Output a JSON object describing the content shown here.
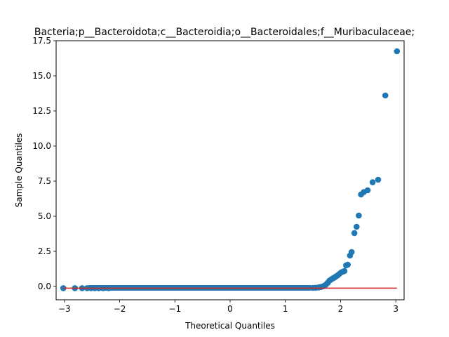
{
  "chart_data": {
    "type": "scatter",
    "title": "Bacteria;p__Bacteroidota;c__Bacteroidia;o__Bacteroidales;f__Muribaculaceae;",
    "xlabel": "Theoretical Quantiles",
    "ylabel": "Sample Quantiles",
    "xlim": [
      -3.15,
      3.15
    ],
    "ylim": [
      -0.95,
      17.5
    ],
    "xticks": [
      -3,
      -2,
      -1,
      0,
      1,
      2,
      3
    ],
    "xtick_labels": [
      "−3",
      "−2",
      "−1",
      "0",
      "1",
      "2",
      "3"
    ],
    "yticks": [
      0.0,
      2.5,
      5.0,
      7.5,
      10.0,
      12.5,
      15.0,
      17.5
    ],
    "ytick_labels": [
      "0.0",
      "2.5",
      "5.0",
      "7.5",
      "10.0",
      "12.5",
      "15.0",
      "17.5"
    ],
    "grid": false,
    "marker_color": "#1f77b4",
    "reference_line": {
      "color": "#d62728",
      "x": [
        -3.02,
        3.02
      ],
      "y": [
        -0.12,
        -0.12
      ]
    },
    "dense_band": {
      "x_from": -2.6,
      "x_to": 1.5,
      "y": -0.1
    },
    "points": [
      [
        -3.02,
        -0.12
      ],
      [
        -2.81,
        -0.12
      ],
      [
        -2.68,
        -0.12
      ],
      [
        -2.59,
        -0.12
      ],
      [
        -2.52,
        -0.12
      ],
      [
        -2.45,
        -0.12
      ],
      [
        -2.38,
        -0.12
      ],
      [
        -2.3,
        -0.12
      ],
      [
        -2.2,
        -0.12
      ],
      [
        1.5,
        -0.1
      ],
      [
        1.55,
        -0.09
      ],
      [
        1.6,
        -0.07
      ],
      [
        1.64,
        -0.04
      ],
      [
        1.68,
        0.0
      ],
      [
        1.71,
        0.06
      ],
      [
        1.74,
        0.15
      ],
      [
        1.77,
        0.27
      ],
      [
        1.8,
        0.42
      ],
      [
        1.83,
        0.5
      ],
      [
        1.86,
        0.57
      ],
      [
        1.89,
        0.64
      ],
      [
        1.92,
        0.72
      ],
      [
        1.95,
        0.8
      ],
      [
        1.98,
        0.9
      ],
      [
        2.01,
        1.0
      ],
      [
        2.04,
        1.05
      ],
      [
        2.07,
        1.1
      ],
      [
        2.1,
        1.5
      ],
      [
        2.13,
        1.55
      ],
      [
        2.17,
        2.2
      ],
      [
        2.2,
        2.45
      ],
      [
        2.25,
        3.8
      ],
      [
        2.29,
        4.25
      ],
      [
        2.33,
        5.05
      ],
      [
        2.37,
        6.55
      ],
      [
        2.42,
        6.72
      ],
      [
        2.49,
        6.85
      ],
      [
        2.58,
        7.42
      ],
      [
        2.68,
        7.6
      ],
      [
        2.81,
        13.6
      ],
      [
        3.02,
        16.75
      ]
    ]
  }
}
